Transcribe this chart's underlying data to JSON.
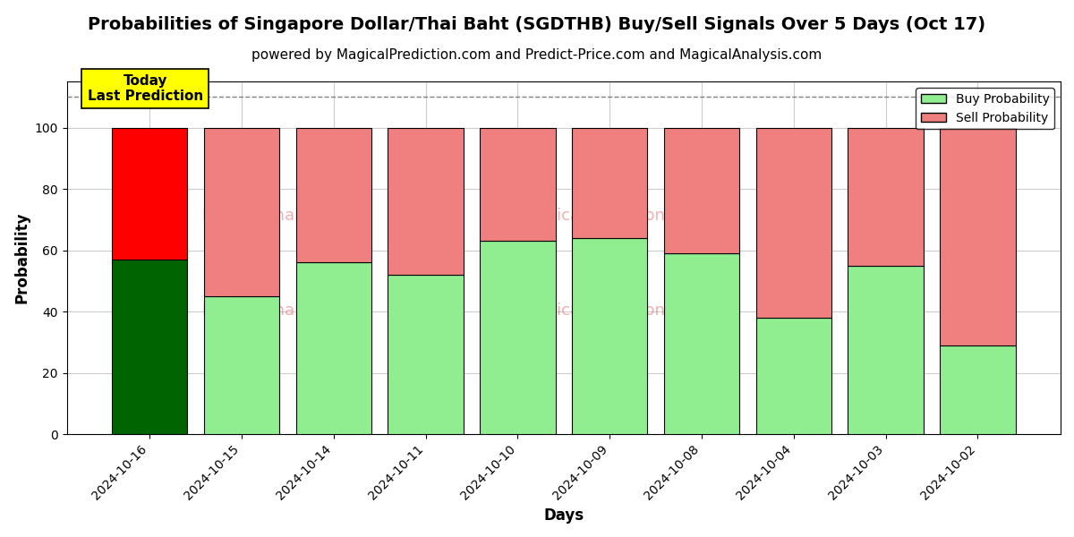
{
  "title": "Probabilities of Singapore Dollar/Thai Baht (SGDTHB) Buy/Sell Signals Over 5 Days (Oct 17)",
  "subtitle": "powered by MagicalPrediction.com and Predict-Price.com and MagicalAnalysis.com",
  "xlabel": "Days",
  "ylabel": "Probability",
  "categories": [
    "2024-10-16",
    "2024-10-15",
    "2024-10-14",
    "2024-10-11",
    "2024-10-10",
    "2024-10-09",
    "2024-10-08",
    "2024-10-04",
    "2024-10-03",
    "2024-10-02"
  ],
  "buy_values": [
    57,
    45,
    56,
    52,
    63,
    64,
    59,
    38,
    55,
    29
  ],
  "sell_values": [
    43,
    55,
    44,
    48,
    37,
    36,
    41,
    62,
    45,
    71
  ],
  "today_buy_color": "#006400",
  "today_sell_color": "#ff0000",
  "buy_color": "#90EE90",
  "sell_color": "#F08080",
  "today_annotation_bg": "#ffff00",
  "today_annotation_text": "Today\nLast Prediction",
  "dashed_line_y": 110,
  "ylim_max": 115,
  "yticks": [
    0,
    20,
    40,
    60,
    80,
    100
  ],
  "background_color": "#ffffff",
  "grid_color": "#cccccc",
  "title_fontsize": 14,
  "subtitle_fontsize": 11,
  "axis_label_fontsize": 12,
  "tick_fontsize": 10,
  "legend_fontsize": 10,
  "bar_width": 0.82
}
